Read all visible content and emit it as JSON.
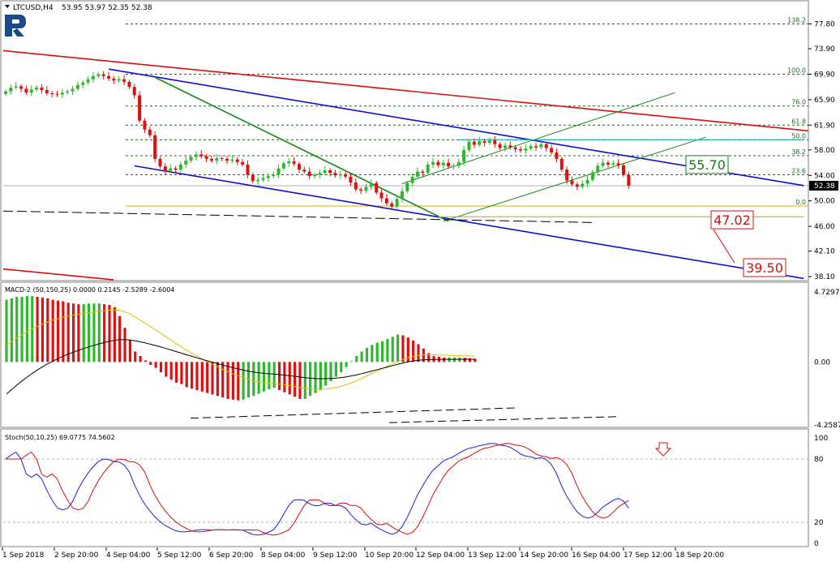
{
  "header": {
    "title": "LTCUSD,H4",
    "ohlc": "53.95 53.97 52.35 52.38"
  },
  "colors": {
    "bull": "#2eb82e",
    "bear": "#e01010",
    "fib": "#1a6d1a",
    "blue": "#1010c8",
    "red_line": "#d81010",
    "green_line": "#1a8a1a",
    "cyan": "#20b0b0",
    "gold": "#d4b000",
    "macd_signal": "#000000",
    "macd_fast": "#e0c000",
    "stoch_main": "#2020d0",
    "stoch_signal": "#d01010",
    "label_green": "#1a7a1a",
    "label_red": "#d01010",
    "logo": "#1a4a8c"
  },
  "chart_data": [
    {
      "type": "candlestick",
      "title": "LTCUSD,H4",
      "ylim": [
        37.6,
        81.3
      ],
      "y_ticks": [
        "77.80",
        "73.90",
        "69.90",
        "65.90",
        "61.90",
        "58.00",
        "54.00",
        "50.00",
        "46.00",
        "42.10",
        "38.10"
      ],
      "current_price": "52.38",
      "x_labels": [
        "1 Sep 2018",
        "2 Sep 20:00",
        "4 Sep 04:00",
        "5 Sep 12:00",
        "6 Sep 20:00",
        "8 Sep 04:00",
        "9 Sep 12:00",
        "10 Sep 20:00",
        "12 Sep 04:00",
        "13 Sep 12:00",
        "14 Sep 20:00",
        "16 Sep 04:00",
        "17 Sep 12:00",
        "18 Sep 20:00"
      ],
      "fib_levels": [
        {
          "label": "138.2",
          "value": 77.8
        },
        {
          "label": "100.0",
          "value": 69.9
        },
        {
          "label": "76.0",
          "value": 64.9
        },
        {
          "label": "61.8",
          "value": 61.9
        },
        {
          "label": "50.0",
          "value": 59.6
        },
        {
          "label": "38.2",
          "value": 57.1
        },
        {
          "label": "23.6",
          "value": 54.1
        },
        {
          "label": "0.0",
          "value": 49.2
        }
      ],
      "targets": [
        {
          "label": "55.70",
          "value": 55.7
        },
        {
          "label": "47.02",
          "value": 47.02
        },
        {
          "label": "39.50",
          "value": 39.5
        }
      ],
      "closes": [
        67.2,
        67.8,
        68.0,
        67.6,
        67.0,
        67.5,
        67.8,
        67.4,
        66.9,
        66.8,
        66.7,
        67.0,
        67.2,
        67.6,
        68.2,
        68.6,
        69.1,
        69.6,
        69.9,
        69.6,
        69.2,
        68.9,
        69.1,
        68.7,
        67.9,
        66.6,
        62.6,
        61.2,
        60.3,
        56.6,
        55.4,
        54.7,
        55.1,
        54.9,
        55.7,
        56.3,
        56.9,
        57.3,
        57.0,
        56.6,
        56.3,
        56.7,
        56.6,
        56.3,
        56.5,
        56.1,
        55.7,
        54.1,
        53.1,
        53.3,
        53.6,
        53.9,
        54.1,
        55.1,
        55.9,
        56.2,
        55.8,
        54.9,
        54.6,
        53.9,
        54.1,
        54.4,
        54.8,
        54.4,
        54.0,
        54.2,
        53.8,
        52.9,
        51.8,
        51.6,
        52.2,
        52.8,
        51.3,
        50.4,
        49.6,
        49.1,
        50.3,
        51.5,
        52.8,
        53.8,
        54.6,
        54.4,
        55.7,
        56.1,
        55.6,
        56.0,
        55.4,
        55.5,
        56.1,
        58.0,
        59.3,
        58.8,
        59.4,
        59.1,
        59.5,
        58.9,
        58.3,
        58.7,
        58.4,
        58.1,
        57.9,
        58.2,
        58.6,
        58.4,
        58.9,
        58.3,
        57.6,
        56.6,
        54.9,
        53.2,
        52.6,
        52.2,
        52.7,
        53.3,
        54.5,
        55.5,
        56.0,
        55.7,
        55.9,
        55.6,
        54.1,
        52.4
      ]
    },
    {
      "type": "bar",
      "title": "MACD-2 (50,150,25) 0.0000 0.2145 -2.5289 -2.6004",
      "ylim": [
        -4.2587,
        4.7297
      ],
      "y_ticks": [
        "4.7297",
        "0.00",
        "-4.2587"
      ],
      "histogram": [
        4.2,
        4.3,
        4.4,
        4.4,
        4.45,
        4.45,
        4.4,
        4.35,
        4.3,
        4.2,
        4.15,
        4.1,
        4.0,
        3.95,
        3.9,
        3.9,
        3.95,
        3.95,
        3.95,
        3.9,
        3.85,
        3.7,
        3.1,
        2.3,
        1.5,
        0.7,
        0.4,
        0.1,
        -0.2,
        -0.4,
        -0.7,
        -1.0,
        -1.2,
        -1.4,
        -1.5,
        -1.7,
        -1.8,
        -1.9,
        -2.0,
        -2.1,
        -2.2,
        -2.3,
        -2.4,
        -2.5,
        -2.55,
        -2.6,
        -2.55,
        -2.4,
        -2.3,
        -2.15,
        -2.0,
        -1.85,
        -1.75,
        -1.9,
        -2.05,
        -2.2,
        -2.35,
        -2.5,
        -2.5,
        -2.3,
        -2.1,
        -1.9,
        -1.6,
        -1.3,
        -1.0,
        -0.7,
        -0.35,
        0.05,
        0.4,
        0.7,
        0.95,
        1.15,
        1.3,
        1.4,
        1.55,
        1.7,
        1.85,
        1.8,
        1.65,
        1.45,
        1.2,
        0.9,
        0.6,
        0.4,
        0.35,
        0.3,
        0.3,
        0.3,
        0.3,
        0.28,
        0.25,
        0.22
      ]
    },
    {
      "type": "line",
      "title": "Stoch(50,10,25) 69.0775 74.5602",
      "ylim": [
        0,
        100
      ],
      "y_ticks": [
        "100",
        "80",
        "20",
        "0"
      ]
    }
  ]
}
